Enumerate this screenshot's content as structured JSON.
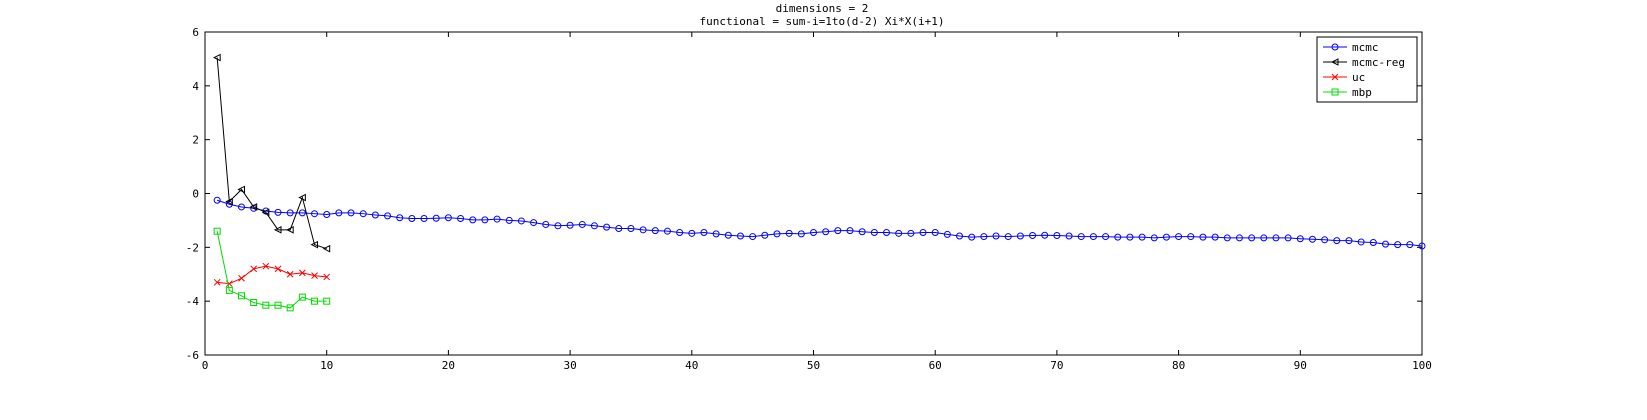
{
  "chart_data": {
    "type": "line",
    "title": "dimensions = 2",
    "subtitle": "functional = sum-i=1to(d-2) Xi*X(i+1)",
    "xlabel": "",
    "ylabel": "",
    "xlim": [
      0,
      100
    ],
    "ylim": [
      -6,
      6
    ],
    "x_ticks": [
      0,
      10,
      20,
      30,
      40,
      50,
      60,
      70,
      80,
      90,
      100
    ],
    "y_ticks": [
      -6,
      -4,
      -2,
      0,
      2,
      4,
      6
    ],
    "grid": false,
    "legend_position": "top-right",
    "series": [
      {
        "name": "mcmc",
        "color": "#0000ff",
        "marker": "circle",
        "x": [
          1,
          2,
          3,
          4,
          5,
          6,
          7,
          8,
          9,
          10,
          11,
          12,
          13,
          14,
          15,
          16,
          17,
          18,
          19,
          20,
          21,
          22,
          23,
          24,
          25,
          26,
          27,
          28,
          29,
          30,
          31,
          32,
          33,
          34,
          35,
          36,
          37,
          38,
          39,
          40,
          41,
          42,
          43,
          44,
          45,
          46,
          47,
          48,
          49,
          50,
          51,
          52,
          53,
          54,
          55,
          56,
          57,
          58,
          59,
          60,
          61,
          62,
          63,
          64,
          65,
          66,
          67,
          68,
          69,
          70,
          71,
          72,
          73,
          74,
          75,
          76,
          77,
          78,
          79,
          80,
          81,
          82,
          83,
          84,
          85,
          86,
          87,
          88,
          89,
          90,
          91,
          92,
          93,
          94,
          95,
          96,
          97,
          98,
          99,
          100
        ],
        "y": [
          -0.25,
          -0.4,
          -0.5,
          -0.55,
          -0.65,
          -0.7,
          -0.72,
          -0.72,
          -0.75,
          -0.78,
          -0.72,
          -0.72,
          -0.75,
          -0.8,
          -0.83,
          -0.9,
          -0.93,
          -0.93,
          -0.92,
          -0.9,
          -0.93,
          -0.98,
          -0.98,
          -0.95,
          -1.0,
          -1.02,
          -1.08,
          -1.15,
          -1.2,
          -1.18,
          -1.15,
          -1.2,
          -1.25,
          -1.3,
          -1.3,
          -1.35,
          -1.38,
          -1.4,
          -1.45,
          -1.48,
          -1.45,
          -1.5,
          -1.55,
          -1.58,
          -1.6,
          -1.55,
          -1.5,
          -1.48,
          -1.5,
          -1.45,
          -1.42,
          -1.38,
          -1.38,
          -1.42,
          -1.45,
          -1.45,
          -1.48,
          -1.48,
          -1.45,
          -1.45,
          -1.52,
          -1.58,
          -1.62,
          -1.6,
          -1.58,
          -1.6,
          -1.58,
          -1.56,
          -1.55,
          -1.56,
          -1.58,
          -1.6,
          -1.6,
          -1.6,
          -1.62,
          -1.62,
          -1.62,
          -1.65,
          -1.62,
          -1.6,
          -1.6,
          -1.62,
          -1.62,
          -1.65,
          -1.65,
          -1.65,
          -1.65,
          -1.65,
          -1.65,
          -1.68,
          -1.7,
          -1.72,
          -1.75,
          -1.75,
          -1.8,
          -1.82,
          -1.88,
          -1.9,
          -1.9,
          -1.95
        ]
      },
      {
        "name": "mcmc-reg",
        "color": "#000000",
        "marker": "triangle-left",
        "x": [
          1,
          2,
          3,
          4,
          5,
          6,
          7,
          8,
          9,
          10
        ],
        "y": [
          5.05,
          -0.3,
          0.15,
          -0.5,
          -0.7,
          -1.35,
          -1.35,
          -0.15,
          -1.9,
          -2.05
        ]
      },
      {
        "name": "uc",
        "color": "#ff0000",
        "marker": "x",
        "x": [
          1,
          2,
          3,
          4,
          5,
          6,
          7,
          8,
          9,
          10
        ],
        "y": [
          -3.3,
          -3.35,
          -3.15,
          -2.8,
          -2.7,
          -2.8,
          -3.0,
          -2.95,
          -3.05,
          -3.1
        ]
      },
      {
        "name": "mbp",
        "color": "#00dd00",
        "marker": "square",
        "x": [
          1,
          2,
          3,
          4,
          5,
          6,
          7,
          8,
          9,
          10
        ],
        "y": [
          -1.4,
          -3.6,
          -3.8,
          -4.05,
          -4.15,
          -4.15,
          -4.25,
          -3.85,
          -4.0,
          -4.0
        ]
      }
    ]
  }
}
